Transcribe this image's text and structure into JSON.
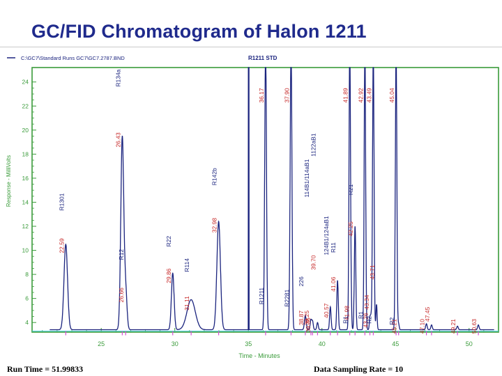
{
  "title": "GC/FID Chromatogram of Halon 1211",
  "header": {
    "file_path": "C:\\GC7\\Standard Runs GC7\\GC7.2787.BND",
    "run_label": "R1211   STD"
  },
  "footer": {
    "run_time": "Run Time = 51.99833",
    "sampling_rate": "Data Sampling Rate = 10"
  },
  "colors": {
    "frame": "#3a9b3a",
    "trace": "#1a237e",
    "peak_label": "#c62828",
    "compound_label": "#1a237e",
    "baseline_line": "#4dd0e1",
    "marker": "#d64fd6"
  },
  "chart_data": {
    "type": "line",
    "xlabel": "Time - Minutes",
    "ylabel": "Response - MilliVolts",
    "xlim": [
      20.3,
      52.0
    ],
    "ylim": [
      3.2,
      25.2
    ],
    "xticks": [
      25,
      30,
      35,
      40,
      45,
      50
    ],
    "yticks": [
      4,
      6,
      8,
      10,
      12,
      14,
      16,
      18,
      20,
      22,
      24
    ],
    "baseline": 3.4,
    "peaks": [
      {
        "rt": 22.59,
        "h": 10.5,
        "w": 0.12
      },
      {
        "rt": 26.43,
        "h": 19.4,
        "w": 0.1
      },
      {
        "rt": 26.66,
        "h": 6.6,
        "w": 0.09
      },
      {
        "rt": 29.86,
        "h": 8.1,
        "w": 0.09
      },
      {
        "rt": 31.11,
        "h": 5.9,
        "w": 0.28
      },
      {
        "rt": 32.98,
        "h": 12.4,
        "w": 0.12
      },
      {
        "rt": 36.17,
        "h": 27.0,
        "w": 0.06
      },
      {
        "rt": 37.9,
        "h": 27.0,
        "w": 0.06
      },
      {
        "rt": 38.87,
        "h": 4.6,
        "w": 0.06
      },
      {
        "rt": 39.25,
        "h": 4.2,
        "w": 0.05
      },
      {
        "rt": 39.36,
        "h": 4.1,
        "w": 0.05
      },
      {
        "rt": 39.7,
        "h": 4.0,
        "w": 0.05
      },
      {
        "rt": 40.57,
        "h": 5.3,
        "w": 0.05
      },
      {
        "rt": 41.06,
        "h": 7.5,
        "w": 0.05
      },
      {
        "rt": 41.89,
        "h": 27.0,
        "w": 0.05
      },
      {
        "rt": 41.98,
        "h": 5.0,
        "w": 0.04
      },
      {
        "rt": 42.25,
        "h": 12.0,
        "w": 0.05
      },
      {
        "rt": 42.92,
        "h": 27.0,
        "w": 0.05
      },
      {
        "rt": 43.26,
        "h": 4.4,
        "w": 0.04
      },
      {
        "rt": 43.34,
        "h": 4.4,
        "w": 0.04
      },
      {
        "rt": 43.49,
        "h": 27.0,
        "w": 0.05
      },
      {
        "rt": 43.71,
        "h": 5.5,
        "w": 0.04
      },
      {
        "rt": 45.04,
        "h": 27.0,
        "w": 0.05
      },
      {
        "rt": 45.21,
        "h": 3.9,
        "w": 0.04
      },
      {
        "rt": 47.1,
        "h": 3.9,
        "w": 0.05
      },
      {
        "rt": 47.45,
        "h": 3.8,
        "w": 0.05
      },
      {
        "rt": 49.21,
        "h": 3.7,
        "w": 0.05
      },
      {
        "rt": 50.63,
        "h": 3.8,
        "w": 0.05
      }
    ],
    "shoulder": {
      "rt_start": 35.0,
      "rt_top": 35.02,
      "rt_end": 35.05
    },
    "peak_labels": [
      {
        "text": "22.59",
        "x": 22.59,
        "y": 11.0
      },
      {
        "text": "26.43",
        "x": 26.43,
        "y": 19.8
      },
      {
        "text": "26.66",
        "x": 26.66,
        "y": 6.9
      },
      {
        "text": "29.86",
        "x": 29.86,
        "y": 8.5
      },
      {
        "text": "31.11",
        "x": 31.11,
        "y": 6.2
      },
      {
        "text": "32.98",
        "x": 32.98,
        "y": 12.7
      },
      {
        "text": "36.17",
        "x": 36.17,
        "y": 23.5
      },
      {
        "text": "37.90",
        "x": 37.9,
        "y": 23.5
      },
      {
        "text": "38.87",
        "x": 38.87,
        "y": 5.0
      },
      {
        "text": "39.25",
        "x": 39.25,
        "y": 5.0
      },
      {
        "text": "39.36",
        "x": 39.36,
        "y": 4.4
      },
      {
        "text": "39.70",
        "x": 39.7,
        "y": 9.6
      },
      {
        "text": "40.57",
        "x": 40.57,
        "y": 5.6
      },
      {
        "text": "41.06",
        "x": 41.06,
        "y": 7.8
      },
      {
        "text": "41.89",
        "x": 41.89,
        "y": 23.5
      },
      {
        "text": "41.98",
        "x": 41.98,
        "y": 5.4
      },
      {
        "text": "42.25",
        "x": 42.25,
        "y": 12.4
      },
      {
        "text": "42.92",
        "x": 42.92,
        "y": 23.5
      },
      {
        "text": "43.26",
        "x": 43.26,
        "y": 4.8
      },
      {
        "text": "43.34",
        "x": 43.34,
        "y": 6.3
      },
      {
        "text": "43.49",
        "x": 43.49,
        "y": 23.5
      },
      {
        "text": "43.71",
        "x": 43.71,
        "y": 8.8
      },
      {
        "text": "45.04",
        "x": 45.04,
        "y": 23.5
      },
      {
        "text": "45.21",
        "x": 45.21,
        "y": 4.3
      },
      {
        "text": "47.10",
        "x": 47.1,
        "y": 4.3
      },
      {
        "text": "47.45",
        "x": 47.45,
        "y": 5.3
      },
      {
        "text": "49.21",
        "x": 49.21,
        "y": 4.3
      },
      {
        "text": "50.63",
        "x": 50.63,
        "y": 4.3
      }
    ],
    "compound_labels": [
      {
        "text": "R1301",
        "x": 22.59,
        "y": 13.3
      },
      {
        "text": "R134a",
        "x": 26.43,
        "y": 23.6
      },
      {
        "text": "R12",
        "x": 26.66,
        "y": 9.2
      },
      {
        "text": "R22",
        "x": 29.86,
        "y": 10.3
      },
      {
        "text": "R114",
        "x": 31.11,
        "y": 8.2
      },
      {
        "text": "R142b",
        "x": 32.98,
        "y": 15.4
      },
      {
        "text": "226",
        "x": 38.87,
        "y": 7.0
      },
      {
        "text": "114B1/114aB1",
        "x": 39.25,
        "y": 14.4
      },
      {
        "text": "1122aB1",
        "x": 39.7,
        "y": 17.8
      },
      {
        "text": "124B1/124aB1",
        "x": 40.57,
        "y": 9.6
      },
      {
        "text": "R11",
        "x": 41.06,
        "y": 9.8
      },
      {
        "text": "R21",
        "x": 42.25,
        "y": 14.6
      },
      {
        "text": "R1211",
        "x": 36.17,
        "y": 5.5
      },
      {
        "text": "R2281",
        "x": 37.9,
        "y": 5.3
      },
      {
        "text": "R1",
        "x": 41.89,
        "y": 3.9
      },
      {
        "text": "R1",
        "x": 42.92,
        "y": 4.3
      },
      {
        "text": "R2",
        "x": 43.49,
        "y": 3.9
      },
      {
        "text": "R2",
        "x": 45.04,
        "y": 3.8
      }
    ],
    "markers": [
      22.59,
      26.43,
      26.66,
      29.86,
      31.11,
      32.98,
      36.17,
      37.9,
      38.87,
      39.25,
      39.36,
      39.7,
      40.57,
      41.06,
      41.89,
      42.25,
      42.92,
      43.26,
      43.49,
      45.04,
      45.21,
      47.1,
      47.45,
      49.21,
      50.63
    ]
  }
}
